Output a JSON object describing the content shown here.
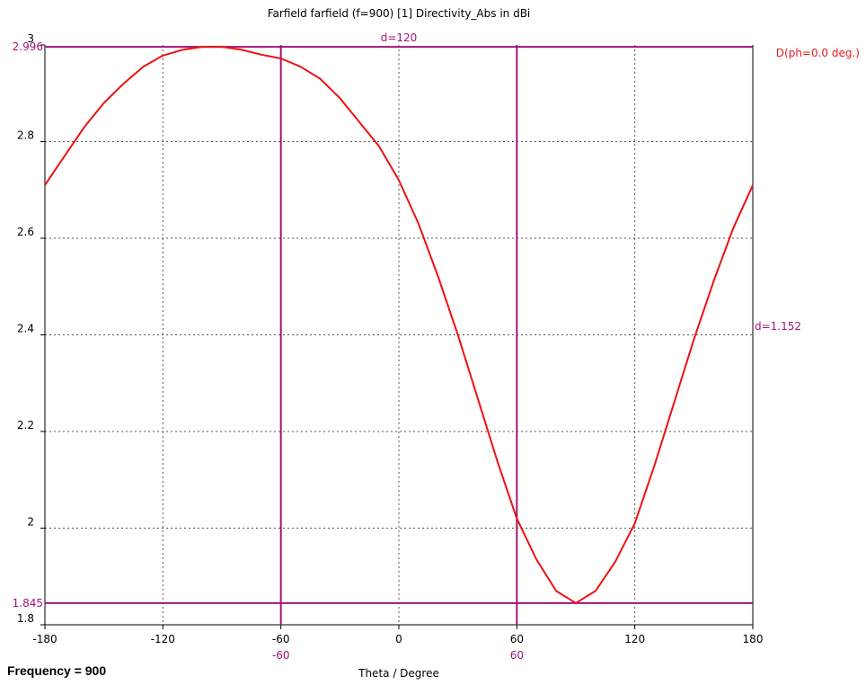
{
  "frequency_label": "Frequency = 900",
  "colors": {
    "curve": "#ee1111",
    "marker": "#a0157a",
    "grid": "#555555",
    "axis": "#000000"
  },
  "chart_data": {
    "type": "line",
    "title": "Farfield farfield (f=900) [1] Directivity_Abs in dBi",
    "xlabel": "Theta / Degree",
    "ylabel": "",
    "xlim": [
      -180,
      180
    ],
    "ylim": [
      1.8,
      3.0
    ],
    "xticks": [
      -180,
      -120,
      -60,
      0,
      60,
      120,
      180
    ],
    "xtick_labels": [
      "-180",
      "-120",
      "-60",
      "0",
      "60",
      "120",
      "180"
    ],
    "yticks": [
      1.8,
      2,
      2.2,
      2.4,
      2.6,
      2.8,
      3
    ],
    "ytick_labels": [
      "1.8",
      "2",
      "2.2",
      "2.4",
      "2.6",
      "2.8",
      "3"
    ],
    "grid": true,
    "legend": {
      "position": "top-right",
      "entries": [
        "D(ph=0.0 deg.)"
      ]
    },
    "series": [
      {
        "name": "D(ph=0.0 deg.)",
        "x": [
          -180,
          -170,
          -160,
          -150,
          -140,
          -130,
          -120,
          -110,
          -100,
          -90,
          -80,
          -70,
          -60,
          -50,
          -40,
          -30,
          -20,
          -10,
          0,
          10,
          20,
          30,
          40,
          50,
          60,
          70,
          80,
          90,
          100,
          110,
          120,
          130,
          140,
          150,
          160,
          170,
          180
        ],
        "y": [
          2.71,
          2.77,
          2.83,
          2.88,
          2.92,
          2.955,
          2.978,
          2.99,
          2.996,
          2.996,
          2.99,
          2.98,
          2.972,
          2.955,
          2.93,
          2.89,
          2.84,
          2.79,
          2.72,
          2.63,
          2.52,
          2.4,
          2.27,
          2.14,
          2.02,
          1.935,
          1.87,
          1.845,
          1.87,
          1.93,
          2.01,
          2.13,
          2.26,
          2.39,
          2.51,
          2.62,
          2.71
        ]
      }
    ],
    "markers": {
      "vertical": [
        {
          "x": -60,
          "label": "-60"
        },
        {
          "x": 60,
          "label": "60"
        }
      ],
      "horizontal": [
        {
          "y": 2.996,
          "label": "2.996"
        },
        {
          "y": 1.845,
          "label": "1.845"
        }
      ],
      "annotations": [
        {
          "text": "d=120"
        },
        {
          "text": "d=1.152"
        }
      ]
    }
  }
}
